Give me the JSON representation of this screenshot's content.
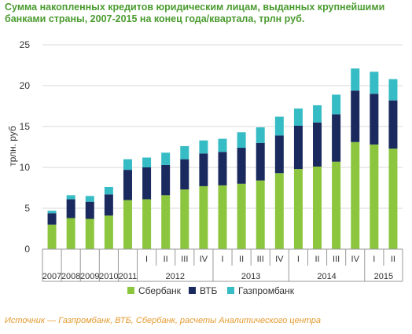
{
  "chart_data": {
    "type": "bar",
    "stacked": true,
    "title": "Сумма накопленных кредитов юридическим лицам, выданных крупнейшими банками страны, 2007-2015 на конец года/квартала, трлн руб.",
    "title_lines": [
      "Сумма накопленных кредитов юридическим лицам, выданных крупнейшими",
      "банками страны, 2007-2015 на конец года/квартала, трлн руб."
    ],
    "ylabel": "трлн. руб",
    "xlabel": "",
    "ylim": [
      0,
      25
    ],
    "yticks": [
      0,
      5,
      10,
      15,
      20,
      25
    ],
    "grid": true,
    "legend_position": "bottom",
    "categories": [
      "2007",
      "2008",
      "2009",
      "2010",
      "2011",
      "I",
      "II",
      "III",
      "IV",
      "I",
      "II",
      "III",
      "IV",
      "I",
      "II",
      "III",
      "IV",
      "I",
      "II"
    ],
    "year_groups": [
      {
        "label": "2012",
        "start": 5,
        "end": 8
      },
      {
        "label": "2013",
        "start": 9,
        "end": 12
      },
      {
        "label": "2014",
        "start": 13,
        "end": 16
      },
      {
        "label": "2015",
        "start": 17,
        "end": 18
      }
    ],
    "series": [
      {
        "name": "Сбербанк",
        "color": "#8cc63f",
        "values": [
          3.0,
          3.8,
          3.7,
          4.1,
          6.0,
          6.1,
          6.6,
          7.3,
          7.7,
          7.8,
          8.0,
          8.4,
          9.3,
          9.8,
          10.1,
          10.7,
          13.1,
          12.8,
          12.3
        ]
      },
      {
        "name": "ВТБ",
        "color": "#1a2a5e",
        "values": [
          1.4,
          2.3,
          2.1,
          2.6,
          3.7,
          3.9,
          3.7,
          3.7,
          4.0,
          4.1,
          4.4,
          4.6,
          4.6,
          5.3,
          5.4,
          5.8,
          6.3,
          6.2,
          5.9
        ]
      },
      {
        "name": "Газпромбанк",
        "color": "#36bcc4",
        "values": [
          0.3,
          0.5,
          0.7,
          0.9,
          1.3,
          1.2,
          1.5,
          1.6,
          1.6,
          1.6,
          1.9,
          1.9,
          2.3,
          2.1,
          2.1,
          2.4,
          2.7,
          2.7,
          2.6
        ]
      }
    ]
  },
  "source_text": "Источник — Газпромбанк, ВТБ, Сбербанк, расчеты Аналитического центра"
}
